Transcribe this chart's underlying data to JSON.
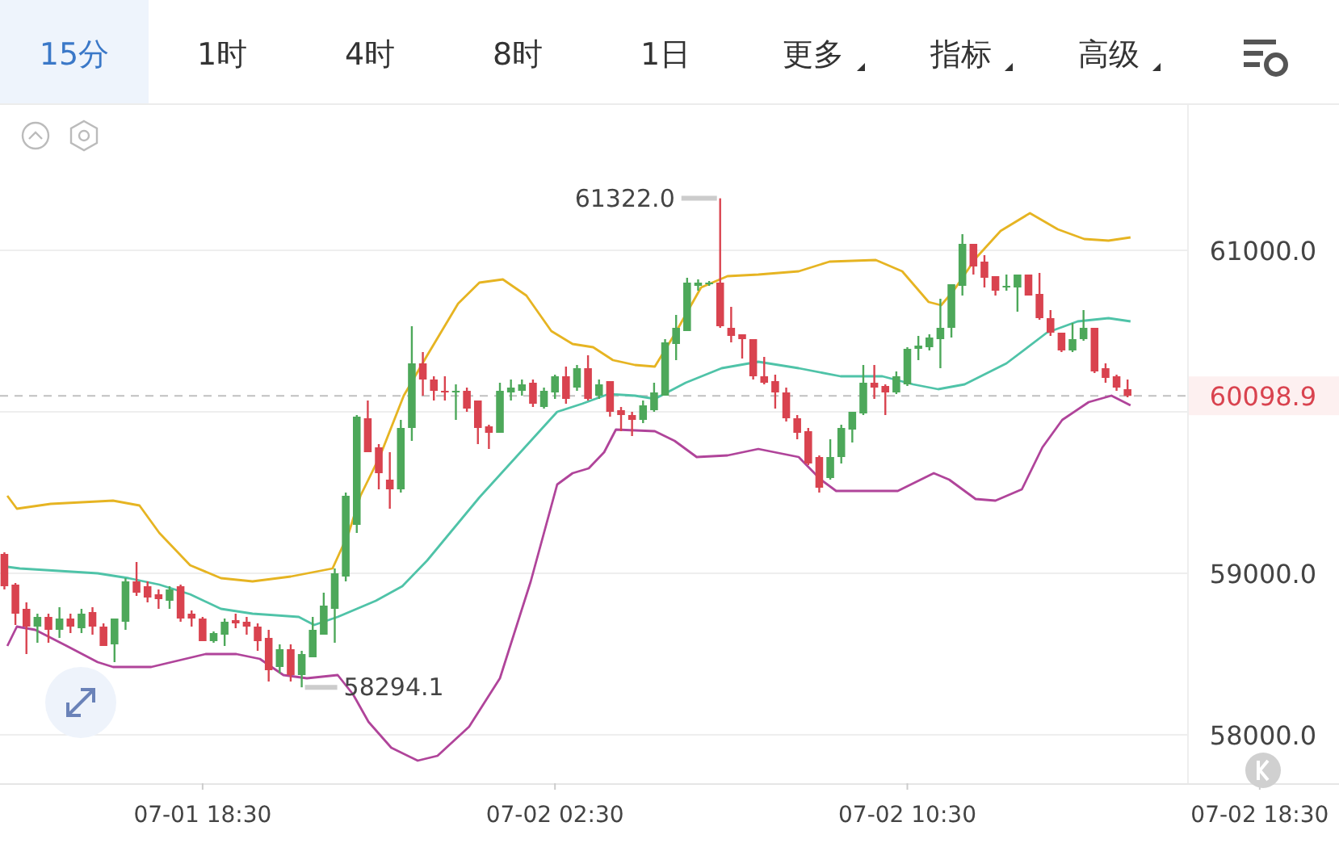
{
  "chart_data": {
    "type": "candlestick",
    "annotations": [
      "15分",
      "1时",
      "4时",
      "8时",
      "1日",
      "更多",
      "指标",
      "高级",
      {
        "text": "61322.0",
        "x": "--07-02T06:15",
        "y": 61322
      },
      {
        "text": "58294.1",
        "x": "--07-01T20:45",
        "y": 58294.1
      }
    ],
    "x": [
      "--07-01T14:00",
      "--07-01T14:15",
      "--07-01T14:30",
      "--07-01T14:45",
      "--07-01T15:00",
      "--07-01T15:15",
      "--07-01T15:30",
      "--07-01T15:45",
      "--07-01T16:00",
      "--07-01T16:15",
      "--07-01T16:30",
      "--07-01T16:45",
      "--07-01T17:00",
      "--07-01T17:15",
      "--07-01T17:30",
      "--07-01T17:45",
      "--07-01T18:00",
      "--07-01T18:15",
      "--07-01T18:30",
      "--07-01T18:45",
      "--07-01T19:00",
      "--07-01T19:15",
      "--07-01T19:30",
      "--07-01T19:45",
      "--07-01T20:00",
      "--07-01T20:15",
      "--07-01T20:30",
      "--07-01T20:45",
      "--07-01T21:00",
      "--07-01T21:15",
      "--07-01T21:30",
      "--07-01T21:45",
      "--07-01T22:00",
      "--07-01T22:15",
      "--07-01T22:30",
      "--07-01T22:45",
      "--07-01T23:00",
      "--07-01T23:15",
      "--07-01T23:30",
      "--07-01T23:45",
      "--07-02T00:00",
      "--07-02T00:15",
      "--07-02T00:30",
      "--07-02T00:45",
      "--07-02T01:00",
      "--07-02T01:15",
      "--07-02T01:30",
      "--07-02T01:45",
      "--07-02T02:00",
      "--07-02T02:15",
      "--07-02T02:30",
      "--07-02T02:45",
      "--07-02T03:00",
      "--07-02T03:15",
      "--07-02T03:30",
      "--07-02T03:45",
      "--07-02T04:00",
      "--07-02T04:15",
      "--07-02T04:30",
      "--07-02T04:45",
      "--07-02T05:00",
      "--07-02T05:15",
      "--07-02T05:30",
      "--07-02T05:45",
      "--07-02T06:00",
      "--07-02T06:15",
      "--07-02T06:30",
      "--07-02T06:45",
      "--07-02T07:00",
      "--07-02T07:15",
      "--07-02T07:30",
      "--07-02T07:45",
      "--07-02T08:00",
      "--07-02T08:15",
      "--07-02T08:30",
      "--07-02T08:45",
      "--07-02T09:00",
      "--07-02T09:15",
      "--07-02T09:30",
      "--07-02T09:45",
      "--07-02T10:00",
      "--07-02T10:15",
      "--07-02T10:30",
      "--07-02T10:45",
      "--07-02T11:00",
      "--07-02T11:15",
      "--07-02T11:30",
      "--07-02T11:45",
      "--07-02T12:00",
      "--07-02T12:15",
      "--07-02T12:30",
      "--07-02T12:45",
      "--07-02T13:00",
      "--07-02T13:15",
      "--07-02T13:30",
      "--07-02T13:45",
      "--07-02T14:00",
      "--07-02T14:15",
      "--07-02T14:30",
      "--07-02T14:45",
      "--07-02T15:00",
      "--07-02T15:15",
      "--07-02T15:30"
    ],
    "ohlc": [
      [
        59120,
        59130,
        58900,
        58920
      ],
      [
        58930,
        58940,
        58680,
        58750
      ],
      [
        58780,
        58820,
        58500,
        58670
      ],
      [
        58670,
        58750,
        58570,
        58730
      ],
      [
        58730,
        58750,
        58570,
        58650
      ],
      [
        58650,
        58790,
        58600,
        58720
      ],
      [
        58720,
        58750,
        58630,
        58670
      ],
      [
        58660,
        58780,
        58630,
        58750
      ],
      [
        58760,
        58790,
        58620,
        58670
      ],
      [
        58670,
        58690,
        58550,
        58550
      ],
      [
        58560,
        58720,
        58450,
        58720
      ],
      [
        58700,
        58970,
        58650,
        58950
      ],
      [
        58950,
        59070,
        58860,
        58880
      ],
      [
        58920,
        58950,
        58820,
        58850
      ],
      [
        58870,
        58900,
        58780,
        58840
      ],
      [
        58830,
        58920,
        58780,
        58900
      ],
      [
        58920,
        58930,
        58700,
        58720
      ],
      [
        58750,
        58770,
        58670,
        58720
      ],
      [
        58720,
        58730,
        58580,
        58580
      ],
      [
        58580,
        58640,
        58570,
        58630
      ],
      [
        58620,
        58720,
        58550,
        58700
      ],
      [
        58710,
        58750,
        58660,
        58690
      ],
      [
        58700,
        58730,
        58620,
        58670
      ],
      [
        58670,
        58690,
        58520,
        58580
      ],
      [
        58600,
        58650,
        58330,
        58400
      ],
      [
        58420,
        58560,
        58380,
        58530
      ],
      [
        58530,
        58560,
        58330,
        58370
      ],
      [
        58370,
        58520,
        58294.1,
        58500
      ],
      [
        58480,
        58730,
        58480,
        58650
      ],
      [
        58620,
        58880,
        58620,
        58800
      ],
      [
        58780,
        59030,
        58570,
        59000
      ],
      [
        58980,
        59500,
        58950,
        59480
      ],
      [
        59300,
        59980,
        59250,
        59970
      ],
      [
        59960,
        60070,
        59750,
        59750
      ],
      [
        59780,
        59800,
        59520,
        59620
      ],
      [
        59580,
        59750,
        59400,
        59520
      ],
      [
        59520,
        59950,
        59500,
        59900
      ],
      [
        59900,
        60530,
        59820,
        60300
      ],
      [
        60300,
        60370,
        60100,
        60200
      ],
      [
        60200,
        60220,
        60070,
        60130
      ],
      [
        60130,
        60220,
        60070,
        60120
      ],
      [
        60120,
        60170,
        59950,
        60130
      ],
      [
        60130,
        60150,
        60000,
        60020
      ],
      [
        60070,
        60070,
        59800,
        59900
      ],
      [
        59910,
        59920,
        59770,
        59870
      ],
      [
        59870,
        60180,
        59870,
        60130
      ],
      [
        60120,
        60200,
        60070,
        60150
      ],
      [
        60130,
        60200,
        60100,
        60170
      ],
      [
        60180,
        60200,
        60030,
        60050
      ],
      [
        60030,
        60150,
        60020,
        60130
      ],
      [
        60120,
        60230,
        60080,
        60220
      ],
      [
        60220,
        60280,
        60050,
        60080
      ],
      [
        60150,
        60290,
        60130,
        60270
      ],
      [
        60270,
        60350,
        60070,
        60080
      ],
      [
        60100,
        60200,
        60080,
        60170
      ],
      [
        60190,
        60190,
        59970,
        60000
      ],
      [
        60010,
        60030,
        59880,
        59980
      ],
      [
        59980,
        60000,
        59850,
        59950
      ],
      [
        59950,
        60070,
        59930,
        60040
      ],
      [
        60010,
        60180,
        60000,
        60120
      ],
      [
        60100,
        60450,
        60100,
        60430
      ],
      [
        60420,
        60600,
        60320,
        60520
      ],
      [
        60500,
        60830,
        60500,
        60800
      ],
      [
        60780,
        60820,
        60750,
        60800
      ],
      [
        60790,
        60810,
        60780,
        60800
      ],
      [
        60800,
        61322,
        60520,
        60530
      ],
      [
        60520,
        60650,
        60430,
        60470
      ],
      [
        60480,
        60480,
        60330,
        60450
      ],
      [
        60450,
        60450,
        60200,
        60220
      ],
      [
        60220,
        60340,
        60170,
        60180
      ],
      [
        60190,
        60230,
        60020,
        60120
      ],
      [
        60120,
        60150,
        59940,
        59960
      ],
      [
        59960,
        59980,
        59830,
        59870
      ],
      [
        59880,
        59900,
        59670,
        59680
      ],
      [
        59720,
        59730,
        59500,
        59530
      ],
      [
        59590,
        59830,
        59580,
        59720
      ],
      [
        59720,
        59920,
        59680,
        59900
      ],
      [
        59890,
        60000,
        59810,
        60000
      ],
      [
        59990,
        60290,
        59980,
        60180
      ],
      [
        60180,
        60290,
        60080,
        60150
      ],
      [
        60160,
        60170,
        59980,
        60120
      ],
      [
        60120,
        60250,
        60110,
        60220
      ],
      [
        60170,
        60400,
        60160,
        60390
      ],
      [
        60390,
        60470,
        60320,
        60410
      ],
      [
        60400,
        60480,
        60380,
        60460
      ],
      [
        60450,
        60700,
        60270,
        60520
      ],
      [
        60520,
        60790,
        60460,
        60790
      ],
      [
        60780,
        61100,
        60720,
        61040
      ],
      [
        61040,
        61040,
        60850,
        60900
      ],
      [
        60930,
        60970,
        60770,
        60830
      ],
      [
        60840,
        60840,
        60720,
        60750
      ],
      [
        60770,
        60850,
        60750,
        60780
      ],
      [
        60770,
        60850,
        60620,
        60850
      ],
      [
        60850,
        60850,
        60720,
        60720
      ],
      [
        60730,
        60860,
        60570,
        60580
      ],
      [
        60580,
        60630,
        60470,
        60490
      ],
      [
        60490,
        60490,
        60370,
        60380
      ],
      [
        60380,
        60550,
        60370,
        60450
      ],
      [
        60450,
        60630,
        60440,
        60520
      ],
      [
        60520,
        60520,
        60240,
        60250
      ],
      [
        60270,
        60300,
        60180,
        60210
      ],
      [
        60220,
        60230,
        60130,
        60150
      ],
      [
        60140,
        60200,
        60090,
        60098.9
      ]
    ],
    "series": [
      {
        "type": "line",
        "color": "#e6b422",
        "x": [
          "--07-01T14:04",
          "--07-01T14:17",
          "--07-01T15:03",
          "--07-01T16:28",
          "--07-01T17:04",
          "--07-01T17:31",
          "--07-01T18:13",
          "--07-01T18:55",
          "--07-01T19:38",
          "--07-01T20:30",
          "--07-01T21:27",
          "--07-01T21:49",
          "--07-01T22:05",
          "--07-01T22:32",
          "--07-01T23:04",
          "--07-01T23:36",
          "--07-02T00:18",
          "--07-02T00:47",
          "--07-02T01:19",
          "--07-02T01:51",
          "--07-02T02:25",
          "--07-02T02:54",
          "--07-02T03:22",
          "--07-02T03:49",
          "--07-02T04:19",
          "--07-02T04:46",
          "--07-02T05:13",
          "--07-02T05:49",
          "--07-02T06:25",
          "--07-02T07:07",
          "--07-02T08:02",
          "--07-02T08:44",
          "--07-02T09:47",
          "--07-02T10:23",
          "--07-02T10:59",
          "--07-02T11:16",
          "--07-02T11:33",
          "--07-02T12:03",
          "--07-02T12:37",
          "--07-02T13:17",
          "--07-02T13:55",
          "--07-02T14:31",
          "--07-02T15:04",
          "--07-02T15:34"
        ],
        "values": [
          59480,
          59400,
          59430,
          59450,
          59420,
          59250,
          59050,
          58970,
          58950,
          58980,
          59030,
          59250,
          59480,
          59730,
          60100,
          60350,
          60670,
          60800,
          60820,
          60720,
          60500,
          60420,
          60400,
          60320,
          60290,
          60280,
          60480,
          60770,
          60840,
          60850,
          60870,
          60930,
          60940,
          60870,
          60680,
          60660,
          60750,
          60950,
          61120,
          61230,
          61130,
          61070,
          61060,
          61080
        ]
      },
      {
        "type": "line",
        "color": "#4fc3a8",
        "x": [
          "--07-01T14:04",
          "--07-01T14:21",
          "--07-01T16:07",
          "--07-01T16:49",
          "--07-01T17:31",
          "--07-01T18:13",
          "--07-01T18:55",
          "--07-01T19:38",
          "--07-01T20:41",
          "--07-01T21:02",
          "--07-01T21:34",
          "--07-01T22:26",
          "--07-01T23:02",
          "--07-01T23:36",
          "--07-02T00:47",
          "--07-02T01:57",
          "--07-02T02:33",
          "--07-02T03:07",
          "--07-02T03:43",
          "--07-02T04:19",
          "--07-02T04:46",
          "--07-02T05:28",
          "--07-02T06:17",
          "--07-02T07:07",
          "--07-02T08:02",
          "--07-02T08:59",
          "--07-02T09:56",
          "--07-02T10:38",
          "--07-02T11:12",
          "--07-02T11:48",
          "--07-02T12:45",
          "--07-02T13:40",
          "--07-02T14:22",
          "--07-02T15:04",
          "--07-02T15:34"
        ],
        "values": [
          59040,
          59030,
          59000,
          58970,
          58930,
          58870,
          58780,
          58750,
          58730,
          58680,
          58730,
          58830,
          58920,
          59080,
          59470,
          59820,
          60000,
          60050,
          60110,
          60100,
          60080,
          60180,
          60270,
          60310,
          60270,
          60220,
          60220,
          60170,
          60140,
          60170,
          60300,
          60490,
          60560,
          60580,
          60560
        ]
      },
      {
        "type": "line",
        "color": "#b0449a",
        "x": [
          "--07-01T14:04",
          "--07-01T14:17",
          "--07-01T14:42",
          "--07-01T15:25",
          "--07-01T16:07",
          "--07-01T16:28",
          "--07-01T17:20",
          "--07-01T18:34",
          "--07-01T19:16",
          "--07-01T19:48",
          "--07-01T20:20",
          "--07-01T20:52",
          "--07-01T21:34",
          "--07-01T21:55",
          "--07-01T22:16",
          "--07-01T22:47",
          "--07-01T23:23",
          "--07-01T23:50",
          "--07-02T00:33",
          "--07-02T01:15",
          "--07-02T01:57",
          "--07-02T02:33",
          "--07-02T02:54",
          "--07-02T03:16",
          "--07-02T03:37",
          "--07-02T03:53",
          "--07-02T04:46",
          "--07-02T05:13",
          "--07-02T05:43",
          "--07-02T06:25",
          "--07-02T07:07",
          "--07-02T08:02",
          "--07-02T08:32",
          "--07-02T08:53",
          "--07-02T09:41",
          "--07-02T10:17",
          "--07-02T11:06",
          "--07-02T11:27",
          "--07-02T12:03",
          "--07-02T12:30",
          "--07-02T13:06",
          "--07-02T13:34",
          "--07-02T14:01",
          "--07-02T14:37",
          "--07-02T15:08",
          "--07-02T15:34"
        ],
        "values": [
          58550,
          58670,
          58650,
          58550,
          58450,
          58420,
          58420,
          58500,
          58500,
          58470,
          58370,
          58350,
          58370,
          58250,
          58080,
          57920,
          57840,
          57870,
          58050,
          58350,
          58950,
          59550,
          59620,
          59650,
          59750,
          59890,
          59880,
          59820,
          59720,
          59730,
          59770,
          59720,
          59580,
          59510,
          59510,
          59510,
          59620,
          59580,
          59460,
          59450,
          59520,
          59780,
          59950,
          60060,
          60100,
          60040
        ]
      }
    ],
    "xlim": [
      "--07-01T13:54",
      "--07-02T20:18"
    ],
    "xticks": [
      {
        "value": "--07-01T18:30",
        "label": "07-01 18:30"
      },
      {
        "value": "--07-02T02:30",
        "label": "07-02 02:30"
      },
      {
        "value": "--07-02T10:30",
        "label": "07-02 10:30"
      },
      {
        "value": "--07-02T18:30",
        "label": "07-02 18:30"
      }
    ],
    "ylim": [
      57700,
      61900
    ],
    "yticks": [
      {
        "value": 58000,
        "label": "58000.0"
      },
      {
        "value": 59000,
        "label": "59000.0"
      },
      {
        "value": 60000,
        "label": null
      },
      {
        "value": 61000,
        "label": "61000.0"
      }
    ],
    "ref_lines": [
      {
        "axis": "y",
        "value": 60098.9,
        "label": "60098.9",
        "color": "#c0c0c0",
        "line_style": "dashed"
      }
    ],
    "grid": "y"
  }
}
